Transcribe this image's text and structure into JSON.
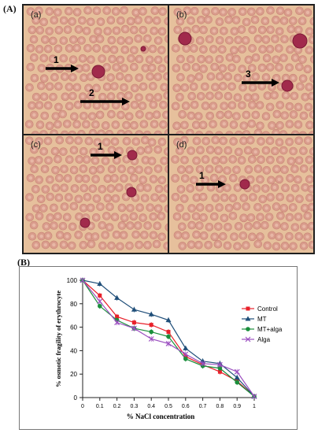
{
  "figure": {
    "panel_a_label": "(A)",
    "panel_b_label": "(B)",
    "micrographs": [
      {
        "tag": "(a)",
        "arrows": [
          {
            "label": "1"
          },
          {
            "label": "2"
          }
        ]
      },
      {
        "tag": "(b)",
        "arrows": [
          {
            "label": "3"
          }
        ]
      },
      {
        "tag": "(c)",
        "arrows": [
          {
            "label": "1"
          }
        ]
      },
      {
        "tag": "(d)",
        "arrows": [
          {
            "label": "1"
          }
        ]
      }
    ]
  },
  "chart_data": {
    "type": "line",
    "title": "",
    "xlabel": "% NaCl concentration",
    "ylabel": "% osmotic fragility of erythrocyte",
    "x": [
      0,
      0.1,
      0.2,
      0.3,
      0.4,
      0.5,
      0.6,
      0.7,
      0.8,
      0.9,
      1
    ],
    "x_tick_labels": [
      "0",
      "0.1",
      "0.2",
      "0.3",
      "0.4",
      "0.5",
      "0.6",
      "0.7",
      "0.8",
      "0.9",
      "1"
    ],
    "ylim": [
      0,
      100
    ],
    "y_ticks": [
      0,
      20,
      40,
      60,
      80,
      100
    ],
    "grid": false,
    "legend_position": "right",
    "series": [
      {
        "name": "Control",
        "color": "#e8202a",
        "marker": "square",
        "values": [
          100,
          87,
          69,
          64,
          62,
          56,
          35,
          28,
          22,
          14,
          1
        ]
      },
      {
        "name": "MT",
        "color": "#1f4e79",
        "marker": "triangle",
        "values": [
          100,
          97,
          85,
          75,
          71,
          66,
          42,
          31,
          29,
          17,
          1
        ]
      },
      {
        "name": "MT+alga",
        "color": "#1a8f3c",
        "marker": "circle",
        "values": [
          100,
          78,
          66,
          59,
          56,
          52,
          33,
          27,
          25,
          13,
          1
        ]
      },
      {
        "name": "Alga",
        "color": "#9b4fc0",
        "marker": "x",
        "values": [
          100,
          82,
          64,
          59,
          50,
          46,
          37,
          29,
          28,
          22,
          1
        ]
      }
    ]
  }
}
